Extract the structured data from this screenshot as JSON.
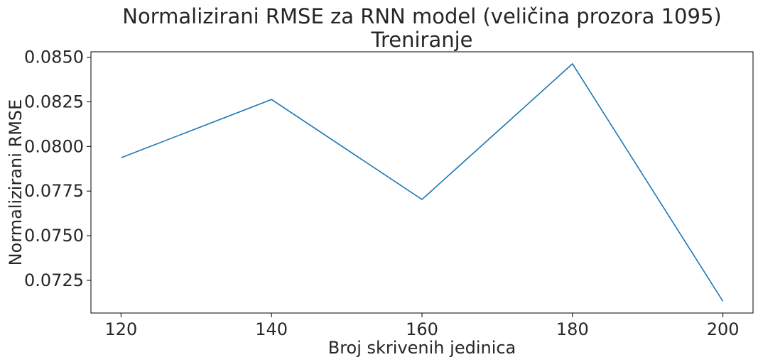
{
  "chart_data": {
    "type": "line",
    "title": "Normalizirani RMSE za RNN model (veličina prozora 1095)",
    "subtitle": "Treniranje",
    "xlabel": "Broj skrivenih jedinica",
    "ylabel": "Normalizirani RMSE",
    "x": [
      120,
      140,
      160,
      180,
      200
    ],
    "series": [
      {
        "values": [
          0.07937,
          0.08263,
          0.07703,
          0.08463,
          0.07133
        ],
        "color": "#1f77b4"
      }
    ],
    "xticks": [
      120,
      140,
      160,
      180,
      200
    ],
    "xtick_labels": [
      "120",
      "140",
      "160",
      "180",
      "200"
    ],
    "yticks": [
      0.0725,
      0.075,
      0.0775,
      0.08,
      0.0825,
      0.085
    ],
    "ytick_labels": [
      "0.0725",
      "0.0750",
      "0.0775",
      "0.0800",
      "0.0825",
      "0.0850"
    ],
    "xlim": [
      116,
      204
    ],
    "ylim": [
      0.07067,
      0.0853
    ],
    "grid": false,
    "legend": false
  }
}
